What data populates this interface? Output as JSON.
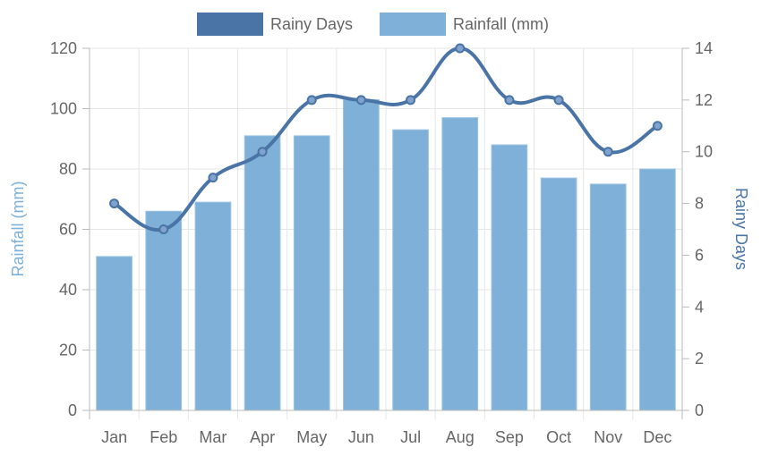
{
  "chart_data": {
    "type": "bar",
    "categories": [
      "Jan",
      "Feb",
      "Mar",
      "Apr",
      "May",
      "Jun",
      "Jul",
      "Aug",
      "Sep",
      "Oct",
      "Nov",
      "Dec"
    ],
    "series": [
      {
        "name": "Rainy Days",
        "type": "line",
        "axis": "right",
        "color": "#4a74a6",
        "values": [
          8,
          7,
          9,
          10,
          12,
          12,
          12,
          14,
          12,
          12,
          10,
          11
        ]
      },
      {
        "name": "Rainfall (mm)",
        "type": "bar",
        "axis": "left",
        "color": "#7fb1d8",
        "values": [
          51,
          66,
          69,
          91,
          91,
          103,
          93,
          97,
          88,
          77,
          75,
          80
        ]
      }
    ],
    "y_left": {
      "label": "Rainfall (mm)",
      "range": [
        0,
        120
      ],
      "ticks": [
        "0",
        "20",
        "40",
        "60",
        "80",
        "100",
        "120"
      ],
      "color": "#7fb1d8"
    },
    "y_right": {
      "label": "Rainy Days",
      "range": [
        0,
        14
      ],
      "ticks": [
        "0",
        "2",
        "4",
        "6",
        "8",
        "10",
        "12",
        "14"
      ],
      "color": "#4a74a6"
    },
    "grid": true,
    "legend_position": "top-center"
  }
}
